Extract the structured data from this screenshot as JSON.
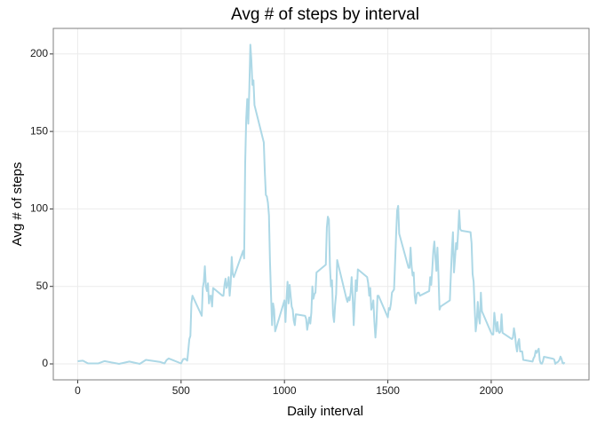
{
  "chart_data": {
    "type": "line",
    "title": "Avg # of steps by interval",
    "x_label": "Daily interval",
    "y_label": "Avg # of steps",
    "x": [
      0,
      25,
      50,
      100,
      130,
      200,
      250,
      300,
      330,
      400,
      420,
      430,
      440,
      450,
      500,
      510,
      520,
      530,
      540,
      545,
      550,
      555,
      600,
      605,
      610,
      615,
      620,
      625,
      630,
      635,
      640,
      645,
      650,
      655,
      700,
      705,
      710,
      715,
      720,
      725,
      730,
      735,
      740,
      745,
      750,
      755,
      800,
      805,
      810,
      815,
      820,
      825,
      830,
      835,
      840,
      845,
      850,
      855,
      900,
      905,
      910,
      915,
      920,
      925,
      930,
      935,
      940,
      945,
      950,
      955,
      1000,
      1005,
      1010,
      1015,
      1020,
      1025,
      1030,
      1035,
      1040,
      1045,
      1050,
      1055,
      1100,
      1105,
      1110,
      1115,
      1120,
      1125,
      1130,
      1135,
      1140,
      1145,
      1150,
      1155,
      1200,
      1205,
      1210,
      1215,
      1220,
      1225,
      1230,
      1235,
      1240,
      1245,
      1250,
      1255,
      1300,
      1305,
      1310,
      1315,
      1320,
      1325,
      1330,
      1335,
      1340,
      1345,
      1350,
      1355,
      1400,
      1405,
      1410,
      1415,
      1420,
      1425,
      1430,
      1435,
      1440,
      1445,
      1450,
      1455,
      1500,
      1505,
      1510,
      1515,
      1520,
      1525,
      1530,
      1535,
      1540,
      1545,
      1550,
      1555,
      1600,
      1605,
      1610,
      1615,
      1620,
      1625,
      1630,
      1635,
      1640,
      1645,
      1650,
      1655,
      1700,
      1705,
      1710,
      1715,
      1720,
      1725,
      1730,
      1735,
      1740,
      1745,
      1750,
      1755,
      1800,
      1805,
      1810,
      1815,
      1820,
      1825,
      1830,
      1835,
      1840,
      1845,
      1850,
      1855,
      1900,
      1905,
      1910,
      1915,
      1920,
      1925,
      1930,
      1935,
      1940,
      1945,
      1950,
      1955,
      2000,
      2005,
      2010,
      2015,
      2020,
      2025,
      2030,
      2035,
      2040,
      2045,
      2050,
      2055,
      2100,
      2105,
      2110,
      2115,
      2120,
      2125,
      2130,
      2135,
      2140,
      2145,
      2150,
      2155,
      2200,
      2205,
      2210,
      2215,
      2220,
      2225,
      2230,
      2235,
      2240,
      2245,
      2250,
      2255,
      2300,
      2305,
      2310,
      2315,
      2320,
      2325,
      2330,
      2335,
      2340,
      2345,
      2350,
      2355
    ],
    "series": [
      {
        "name": "steps",
        "color": "#add8e6",
        "values": [
          1.7,
          2.1,
          0.3,
          0.3,
          1.8,
          0,
          1.5,
          0,
          2.6,
          1.2,
          0.3,
          2.5,
          3.5,
          3,
          0.3,
          3,
          3.3,
          2.1,
          16,
          18,
          39,
          44,
          31,
          49,
          53,
          63,
          50,
          47,
          52,
          39,
          44,
          44,
          37,
          49,
          44,
          44,
          51,
          55,
          49,
          51,
          56,
          44,
          52,
          69,
          58,
          56,
          73,
          68,
          129,
          158,
          171,
          155,
          177,
          206,
          196,
          180,
          183,
          167,
          143,
          124,
          109,
          108,
          104,
          96,
          66,
          45,
          25,
          39,
          35,
          21,
          41,
          27,
          42,
          53,
          39,
          51,
          44,
          37,
          35,
          28,
          25,
          32,
          31,
          29,
          22,
          26,
          30,
          26,
          33,
          50,
          42,
          45,
          46,
          59,
          64,
          88,
          95,
          93,
          63,
          50,
          54,
          32,
          27,
          38,
          45,
          67,
          42,
          40,
          43,
          41,
          46,
          56,
          43,
          25,
          40,
          54,
          47,
          61,
          56,
          52,
          44,
          49,
          35,
          37,
          41,
          27,
          17,
          26,
          44,
          44,
          30,
          36,
          35,
          39,
          46,
          47,
          48,
          65,
          83,
          99,
          102,
          84,
          62,
          62,
          75,
          63,
          57,
          59,
          44,
          39,
          45,
          46,
          46,
          44,
          47,
          56,
          51,
          61,
          73,
          79,
          69,
          60,
          75,
          57,
          35,
          37,
          41,
          58,
          74,
          85,
          59,
          68,
          78,
          74,
          85,
          99,
          87,
          86,
          85,
          78,
          58,
          53,
          36,
          21,
          27,
          40,
          30,
          26,
          46,
          34,
          20,
          19,
          19,
          33,
          27,
          21,
          27,
          21,
          20,
          21,
          32,
          20,
          16,
          17,
          23,
          19,
          12,
          8,
          14,
          16,
          8,
          8,
          8,
          2.6,
          1.5,
          3.7,
          4.8,
          8.5,
          7.1,
          8.7,
          9.8,
          2.2,
          0.3,
          0.1,
          1.6,
          4.6,
          3.3,
          2.8,
          0,
          0.8,
          1,
          1.6,
          2.6,
          4.7,
          3.3,
          0.6,
          0.2,
          1.1
        ]
      }
    ],
    "xlim": [
      -118,
      2473
    ],
    "xticks": [
      0,
      500,
      1000,
      1500,
      2000
    ],
    "ylim": [
      -10.3,
      216.5
    ],
    "yticks": [
      0,
      50,
      100,
      150,
      200
    ],
    "grid": true
  }
}
